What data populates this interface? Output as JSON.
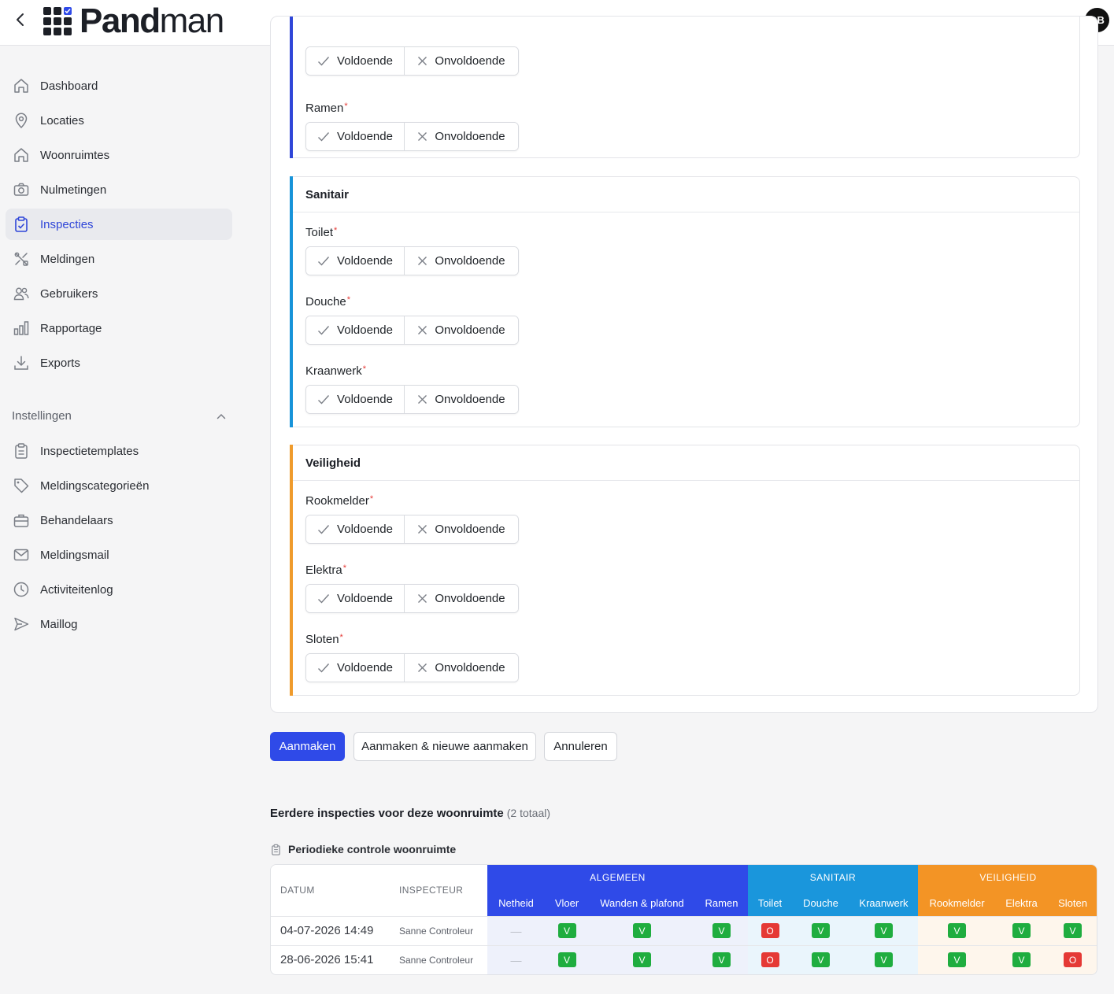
{
  "app": {
    "brand_bold": "Pand",
    "brand_light": "man",
    "user_initials": "DB"
  },
  "sidebar": {
    "items": [
      {
        "label": "Dashboard",
        "icon": "home-icon"
      },
      {
        "label": "Locaties",
        "icon": "map-pin-icon"
      },
      {
        "label": "Woonruimtes",
        "icon": "home-icon"
      },
      {
        "label": "Nulmetingen",
        "icon": "camera-icon"
      },
      {
        "label": "Inspecties",
        "icon": "clipboard-check-icon",
        "active": true
      },
      {
        "label": "Meldingen",
        "icon": "tools-icon"
      },
      {
        "label": "Gebruikers",
        "icon": "users-icon"
      },
      {
        "label": "Rapportage",
        "icon": "bar-chart-icon"
      },
      {
        "label": "Exports",
        "icon": "download-icon"
      }
    ],
    "settings_heading": "Instellingen",
    "settings_items": [
      {
        "label": "Inspectietemplates",
        "icon": "clipboard-list-icon"
      },
      {
        "label": "Meldingscategorieën",
        "icon": "tag-icon"
      },
      {
        "label": "Behandelaars",
        "icon": "briefcase-icon"
      },
      {
        "label": "Meldingsmail",
        "icon": "mail-icon"
      },
      {
        "label": "Activiteitenlog",
        "icon": "clock-icon"
      },
      {
        "label": "Maillog",
        "icon": "send-icon"
      }
    ]
  },
  "form": {
    "ok_label": "Voldoende",
    "fail_label": "Onvoldoende",
    "required_mark": "*",
    "algemeen_fields": [
      "Ramen"
    ],
    "sections": [
      {
        "title": "Sanitair",
        "color": "#1793d9",
        "fields": [
          "Toilet",
          "Douche",
          "Kraanwerk"
        ]
      },
      {
        "title": "Veiligheid",
        "color": "#ef9b2c",
        "fields": [
          "Rookmelder",
          "Elektra",
          "Sloten"
        ]
      }
    ],
    "algemeen_color": "#2f46d8"
  },
  "actions": {
    "create": "Aanmaken",
    "create_new": "Aanmaken & nieuwe aanmaken",
    "cancel": "Annuleren"
  },
  "previous": {
    "title": "Eerdere inspecties voor deze woonruimte",
    "count": "(2 totaal)",
    "template_name": "Periodieke controle woonruimte",
    "col_date": "DATUM",
    "col_inspector": "INSPECTEUR",
    "groups": [
      {
        "label": "ALGEMEEN",
        "color": "#2f4ae8",
        "columns": [
          "Netheid",
          "Vloer",
          "Wanden & plafond",
          "Ramen"
        ]
      },
      {
        "label": "SANITAIR",
        "color": "#1a96dc",
        "columns": [
          "Toilet",
          "Douche",
          "Kraanwerk"
        ]
      },
      {
        "label": "VEILIGHEID",
        "color": "#f39425",
        "columns": [
          "Rookmelder",
          "Elektra",
          "Sloten"
        ]
      }
    ],
    "rows": [
      {
        "date": "04-07-2026 14:49",
        "inspector": "Sanne Controleur",
        "results": [
          "—",
          "V",
          "V",
          "V",
          "O",
          "V",
          "V",
          "V",
          "V",
          "V"
        ]
      },
      {
        "date": "28-06-2026 15:41",
        "inspector": "Sanne Controleur",
        "results": [
          "—",
          "V",
          "V",
          "V",
          "O",
          "V",
          "V",
          "V",
          "V",
          "O"
        ]
      }
    ]
  }
}
